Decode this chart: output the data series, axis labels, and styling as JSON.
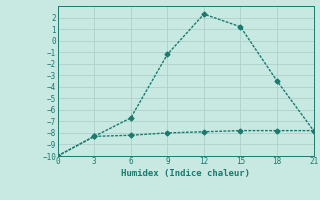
{
  "xlabel": "Humidex (Indice chaleur)",
  "line1_x": [
    0,
    3,
    6,
    9,
    12,
    15,
    18,
    21
  ],
  "line1_y": [
    -10,
    -8.3,
    -6.7,
    -1.2,
    2.3,
    1.2,
    -3.5,
    -7.8
  ],
  "line2_x": [
    0,
    3,
    6,
    9,
    12,
    15,
    18,
    21
  ],
  "line2_y": [
    -10,
    -8.3,
    -8.2,
    -8.0,
    -7.9,
    -7.8,
    -7.8,
    -7.8
  ],
  "line_color": "#1a7a6e",
  "bg_color": "#c8e8e2",
  "grid_color": "#b0d0cc",
  "xlim": [
    0,
    21
  ],
  "ylim": [
    -10,
    3
  ],
  "xticks": [
    0,
    3,
    6,
    9,
    12,
    15,
    18,
    21
  ],
  "yticks": [
    -10,
    -9,
    -8,
    -7,
    -6,
    -5,
    -4,
    -3,
    -2,
    -1,
    0,
    1,
    2
  ],
  "marker": "D",
  "markersize": 2.5,
  "linewidth": 1.0,
  "tick_fontsize": 5.5,
  "xlabel_fontsize": 6.5
}
